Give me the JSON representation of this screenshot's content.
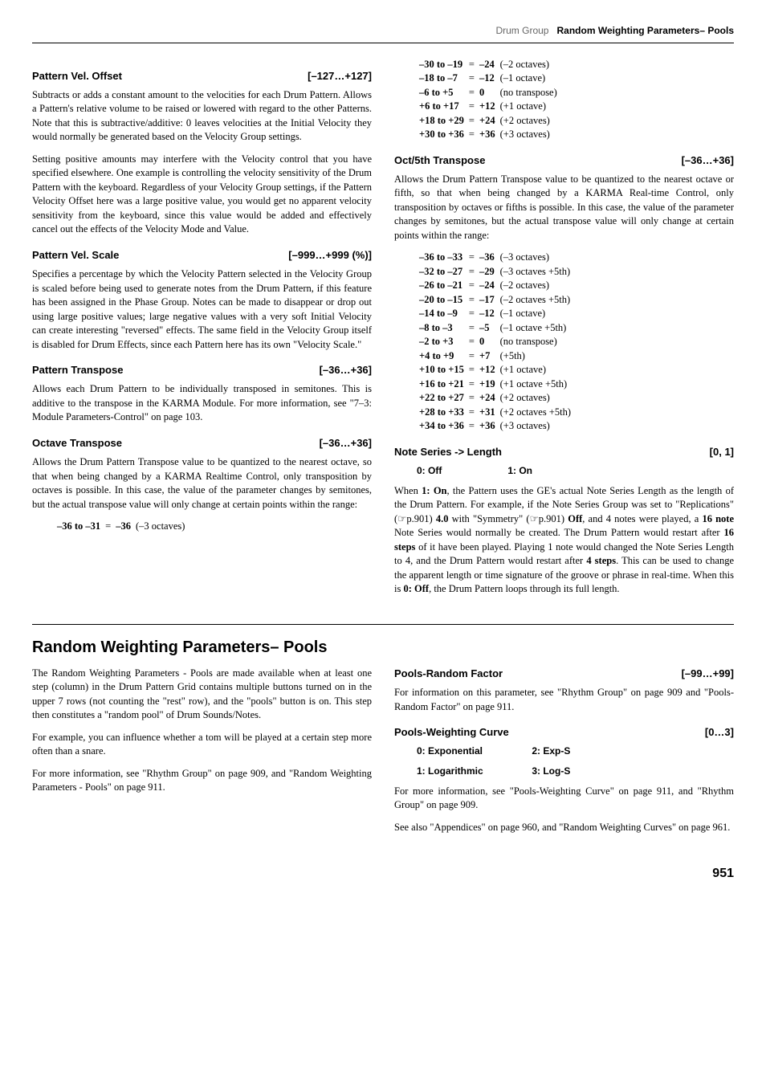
{
  "header": {
    "left": "Drum Group",
    "right": "Random Weighting Parameters– Pools"
  },
  "leftcol": {
    "p1": {
      "title": "Pattern Vel. Offset",
      "range": "[–127…+127]",
      "body1": "Subtracts or adds a constant amount to the velocities for each Drum Pattern. Allows a Pattern's relative volume to be raised or lowered with regard to the other Patterns. Note that this is subtractive/additive: 0 leaves velocities at the Initial Velocity they would normally be generated based on the Velocity Group settings.",
      "body2": "Setting positive amounts may interfere with the Velocity control that you have specified elsewhere. One example is controlling the velocity sensitivity of the Drum Pattern with the keyboard. Regardless of your Velocity Group settings, if the Pattern Velocity Offset here was a large positive value, you would get no apparent velocity sensitivity from the keyboard, since this value would be added and effectively cancel out the effects of the Velocity Mode and Value."
    },
    "p2": {
      "title": "Pattern Vel. Scale",
      "range": "[–999…+999 (%)]",
      "body": "Specifies a percentage by which the Velocity Pattern selected in the Velocity Group is scaled before being used to generate notes from the Drum Pattern, if this feature has been assigned in the Phase Group. Notes can be made to disappear or drop out using large positive values; large negative values with a very soft Initial Velocity can create interesting \"reversed\" effects. The same field in the Velocity Group itself is disabled for Drum Effects, since each Pattern here has its own \"Velocity Scale.\""
    },
    "p3": {
      "title": "Pattern Transpose",
      "range": "[–36…+36]",
      "body": "Allows each Drum Pattern to be individually transposed in semitones. This is additive to the transpose in the KARMA Module. For more information, see \"7–3: Module Parameters-Control\" on page 103."
    },
    "p4": {
      "title": "Octave Transpose",
      "range": "[–36…+36]",
      "body": "Allows the Drum Pattern Transpose value to be quantized to the nearest octave, so that when being changed by a KARMA Realtime Control, only transposition by octaves is possible. In this case, the value of the parameter changes by semitones, but the actual transpose value will only change at certain points within the range:",
      "table": [
        [
          "–36 to –31",
          "=",
          "–36",
          "(–3 octaves)"
        ]
      ]
    }
  },
  "rightcol": {
    "table1": [
      [
        "–30 to –19",
        "=",
        "–24",
        "(–2 octaves)"
      ],
      [
        "–18 to –7",
        "=",
        "–12",
        "(–1 octave)"
      ],
      [
        "–6 to +5",
        "=",
        "0",
        "(no transpose)"
      ],
      [
        "+6 to +17",
        "=",
        "+12",
        "(+1 octave)"
      ],
      [
        "+18 to +29",
        "=",
        "+24",
        "(+2 octaves)"
      ],
      [
        "+30 to +36",
        "=",
        "+36",
        "(+3 octaves)"
      ]
    ],
    "p1": {
      "title": "Oct/5th Transpose",
      "range": "[–36…+36]",
      "body": "Allows the Drum Pattern Transpose value to be quantized to the nearest octave or fifth, so that when being changed by a KARMA Real-time Control, only transposition by octaves or fifths is possible. In this case, the value of the parameter changes by semitones, but the actual transpose value will only change at certain points within the range:",
      "table": [
        [
          "–36 to –33",
          "=",
          "–36",
          "(–3 octaves)"
        ],
        [
          "–32 to –27",
          "=",
          "–29",
          "(–3 octaves +5th)"
        ],
        [
          "–26 to –21",
          "=",
          "–24",
          "(–2 octaves)"
        ],
        [
          "–20 to –15",
          "=",
          "–17",
          "(–2 octaves +5th)"
        ],
        [
          "–14 to –9",
          "=",
          "–12",
          "(–1 octave)"
        ],
        [
          "–8 to –3",
          "=",
          "–5",
          "(–1 octave +5th)"
        ],
        [
          "–2 to +3",
          "=",
          "0",
          "(no transpose)"
        ],
        [
          "+4 to +9",
          "=",
          "+7",
          "(+5th)"
        ],
        [
          "+10 to +15",
          "=",
          "+12",
          "(+1 octave)"
        ],
        [
          "+16 to +21",
          "=",
          "+19",
          "(+1 octave +5th)"
        ],
        [
          "+22 to +27",
          "=",
          "+24",
          "(+2 octaves)"
        ],
        [
          "+28 to +33",
          "=",
          "+31",
          "(+2 octaves +5th)"
        ],
        [
          "+34 to +36",
          "=",
          "+36",
          "(+3 octaves)"
        ]
      ]
    },
    "p2": {
      "title": "Note Series -> Length",
      "range": "[0, 1]",
      "opt0": "0: Off",
      "opt1": "1: On",
      "body": "When 1: On, the Pattern uses the GE's actual Note Series Length as the length of the Drum Pattern. For example, if the Note Series Group was set to \"Replications\" (☞p.901) 4.0 with \"Symmetry\" (☞p.901) Off, and 4 notes were played, a 16 note Note Series would normally be created. The Drum Pattern would restart after 16 steps of it have been played. Playing 1 note would changed the Note Series Length to 4, and the Drum Pattern would restart after 4 steps. This can be used to change the apparent length or time signature of the groove or phrase in real-time. When this is 0: Off, the Drum Pattern loops through its full length."
    }
  },
  "section": {
    "title": "Random Weighting Parameters– Pools",
    "left": {
      "body1": "The Random Weighting Parameters - Pools are made available when at least one step (column) in the Drum Pattern Grid contains multiple buttons turned on in the upper 7 rows (not counting the \"rest\" row), and the \"pools\" button is on. This step then constitutes a \"random pool\" of Drum Sounds/Notes.",
      "body2": "For example, you can influence whether a tom will be played at a certain step more often than a snare.",
      "body3": "For more information, see \"Rhythm Group\" on page 909, and \"Random Weighting Parameters - Pools\" on page 911."
    },
    "right": {
      "p1": {
        "title": "Pools-Random Factor",
        "range": "[–99…+99]",
        "body": "For information on this parameter, see \"Rhythm Group\" on page 909 and \"Pools-Random Factor\" on page 911."
      },
      "p2": {
        "title": "Pools-Weighting Curve",
        "range": "[0…3]",
        "optA0": "0: Exponential",
        "optA1": "2: Exp-S",
        "optB0": "1: Logarithmic",
        "optB1": "3: Log-S",
        "body1": "For more information, see \"Pools-Weighting Curve\" on page 911, and \"Rhythm Group\" on page 909.",
        "body2": "See also \"Appendices\" on page 960, and \"Random Weighting Curves\" on page 961."
      }
    }
  },
  "pagenum": "951"
}
